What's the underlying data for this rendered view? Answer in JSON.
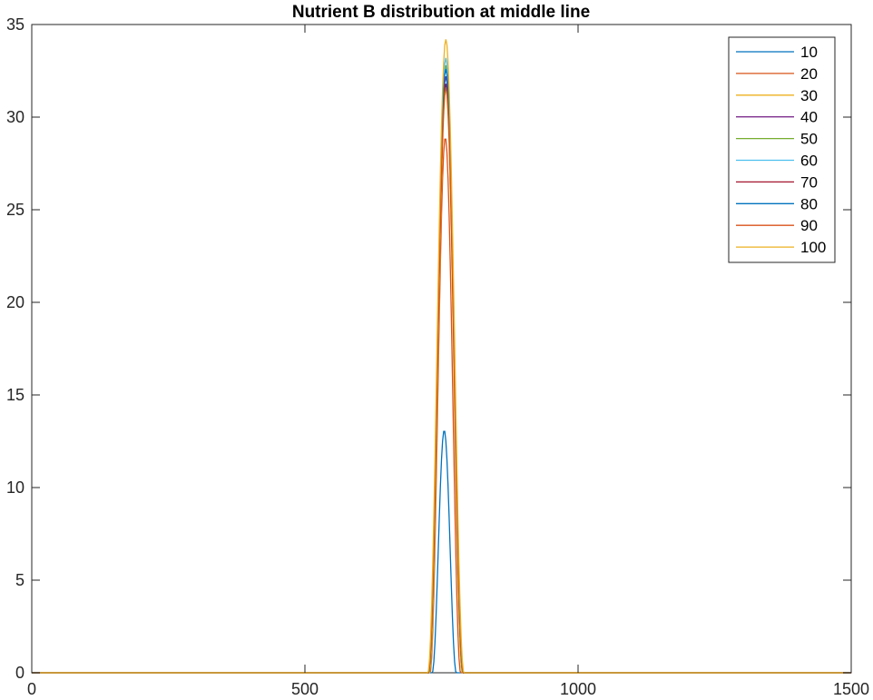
{
  "chart_data": {
    "type": "line",
    "title": "Nutrient B distribution at middle line",
    "xlabel": "",
    "ylabel": "",
    "xlim": [
      0,
      1500
    ],
    "ylim": [
      0,
      35
    ],
    "x_ticks": [
      "0",
      "500",
      "1000",
      "1500"
    ],
    "y_ticks": [
      "0",
      "5",
      "10",
      "15",
      "20",
      "25",
      "30",
      "35"
    ],
    "grid": false,
    "legend_position": "top-right",
    "series": [
      {
        "name": "10",
        "color": "#0072BD",
        "peak_x": 755,
        "peak_y": 13.1,
        "half_width": 22
      },
      {
        "name": "20",
        "color": "#D95319",
        "peak_x": 757,
        "peak_y": 28.9,
        "half_width": 28
      },
      {
        "name": "30",
        "color": "#EDB120",
        "peak_x": 758,
        "peak_y": 31.5,
        "half_width": 30
      },
      {
        "name": "40",
        "color": "#7E2F8E",
        "peak_x": 758,
        "peak_y": 32.2,
        "half_width": 31
      },
      {
        "name": "50",
        "color": "#77AC30",
        "peak_x": 758,
        "peak_y": 32.8,
        "half_width": 31
      },
      {
        "name": "60",
        "color": "#4DBEEE",
        "peak_x": 758,
        "peak_y": 33.2,
        "half_width": 32
      },
      {
        "name": "70",
        "color": "#A2142F",
        "peak_x": 758,
        "peak_y": 31.8,
        "half_width": 32
      },
      {
        "name": "80",
        "color": "#0072BD",
        "peak_x": 758,
        "peak_y": 32.6,
        "half_width": 32
      },
      {
        "name": "90",
        "color": "#D95319",
        "peak_x": 758,
        "peak_y": 31.6,
        "half_width": 32
      },
      {
        "name": "100",
        "color": "#EDB120",
        "peak_x": 758,
        "peak_y": 34.2,
        "half_width": 33
      }
    ]
  }
}
